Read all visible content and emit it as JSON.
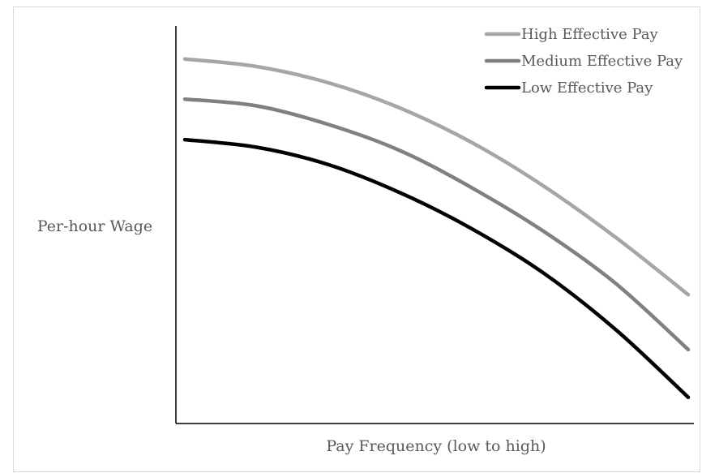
{
  "chart_data": {
    "type": "line",
    "title": "",
    "xlabel": "Pay Frequency (low to high)",
    "ylabel": "Per-hour Wage",
    "x_ticks_shown": false,
    "y_ticks_shown": false,
    "grid": false,
    "legend_position": "top-right",
    "x": [
      0,
      1,
      2,
      3,
      4,
      5,
      6,
      7
    ],
    "xlim": [
      0,
      7
    ],
    "ylim": [
      0,
      100
    ],
    "series": [
      {
        "name": "High Effective Pay",
        "color": "#a6a6a6",
        "values": [
          91.7,
          89.8,
          85.7,
          79.3,
          70.6,
          59.6,
          46.7,
          32.4
        ]
      },
      {
        "name": "Medium Effective Pay",
        "color": "#808080",
        "values": [
          81.6,
          79.9,
          75.2,
          68.6,
          59.2,
          48.2,
          35.1,
          18.6
        ]
      },
      {
        "name": "Low Effective Pay",
        "color": "#000000",
        "values": [
          71.4,
          69.5,
          65.1,
          58.0,
          48.9,
          37.7,
          23.5,
          6.6
        ]
      }
    ]
  }
}
